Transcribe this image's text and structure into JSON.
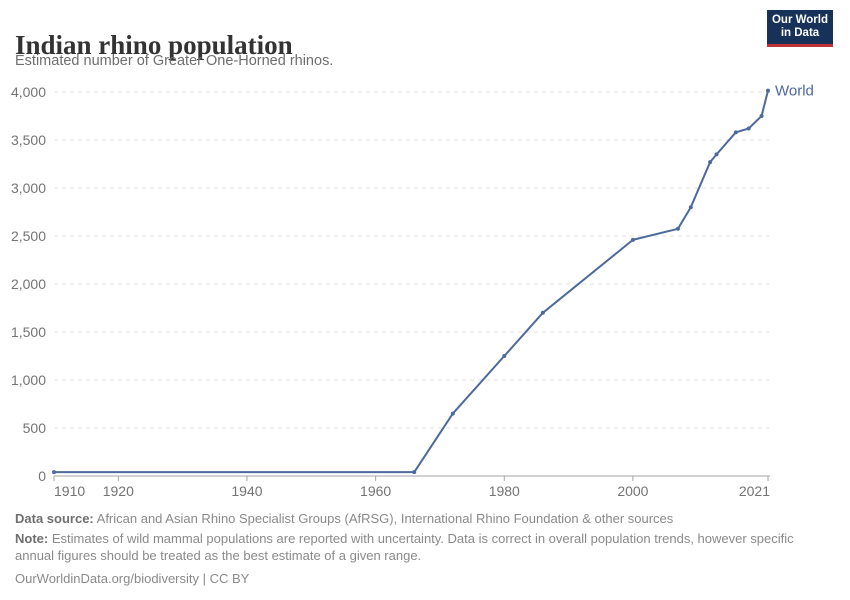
{
  "header": {
    "title": "Indian rhino population",
    "subtitle": "Estimated number of Greater One-Horned rhinos.",
    "logo": {
      "line1": "Our World",
      "line2": "in Data"
    }
  },
  "chart_data": {
    "type": "line",
    "title": "Indian rhino population",
    "subtitle": "Estimated number of Greater One-Horned rhinos.",
    "xlabel": "",
    "ylabel": "",
    "xlim": [
      1910,
      2021
    ],
    "ylim": [
      0,
      4000
    ],
    "grid": "horizontal-dashed",
    "legend_position": "end-of-line-label",
    "x_ticks": [
      1910,
      1920,
      1940,
      1960,
      1980,
      2000,
      2021
    ],
    "y_ticks": [
      0,
      500,
      1000,
      1500,
      2000,
      2500,
      3000,
      3500,
      4000
    ],
    "series": [
      {
        "name": "World",
        "color": "#4c6a9c",
        "points": [
          {
            "year": 1910,
            "value": 40
          },
          {
            "year": 1966,
            "value": 40
          },
          {
            "year": 1972,
            "value": 650
          },
          {
            "year": 1980,
            "value": 1250
          },
          {
            "year": 1986,
            "value": 1700
          },
          {
            "year": 2000,
            "value": 2460
          },
          {
            "year": 2007,
            "value": 2575
          },
          {
            "year": 2009,
            "value": 2800
          },
          {
            "year": 2012,
            "value": 3270
          },
          {
            "year": 2013,
            "value": 3350
          },
          {
            "year": 2016,
            "value": 3580
          },
          {
            "year": 2018,
            "value": 3620
          },
          {
            "year": 2020,
            "value": 3750
          },
          {
            "year": 2021,
            "value": 4014
          }
        ]
      }
    ]
  },
  "footer": {
    "source_label": "Data source:",
    "source_text": " African and Asian Rhino Specialist Groups (AfRSG), International Rhino Foundation & other sources",
    "note_label": "Note:",
    "note_text": " Estimates of wild mammal populations are reported with uncertainty. Data is correct in overall population trends, however specific annual figures should be treated as the best estimate of a given range.",
    "citation": "OurWorldinData.org/biodiversity | CC BY"
  },
  "colors": {
    "series_line": "#4c6a9c",
    "gridline": "#e0e0e0",
    "axis_line": "#a5a5a5",
    "axis_label": "#737373",
    "title_text": "#333333",
    "subtitle_text": "#6e6e6e",
    "footer_text": "#8a8a8a",
    "logo_background": "#183158",
    "logo_red_bar": "#c23335"
  }
}
